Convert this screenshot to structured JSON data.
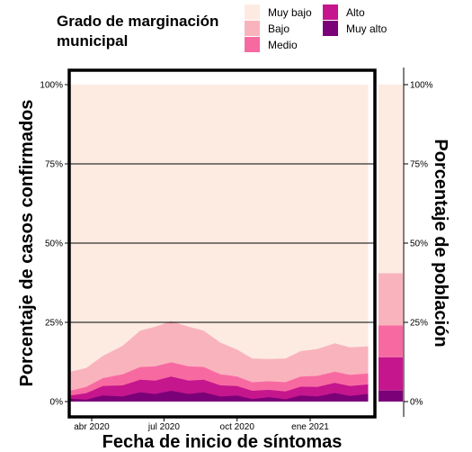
{
  "legend": {
    "title_line1": "Grado de marginación",
    "title_line2": "municipal",
    "items": [
      {
        "label": "Muy bajo",
        "color": "#fdebe2"
      },
      {
        "label": "Bajo",
        "color": "#f9b3bd"
      },
      {
        "label": "Medio",
        "color": "#f76aa1"
      },
      {
        "label": "Alto",
        "color": "#c5168d"
      },
      {
        "label": "Muy alto",
        "color": "#7a0177"
      }
    ]
  },
  "chart_data": {
    "type": "area",
    "stacking": "percent",
    "xlabel": "Fecha de inicio de síntomas",
    "ylabel": "Porcentaje de casos confirmados",
    "x_ticks": [
      "abr 2020",
      "jul 2020",
      "oct 2020",
      "ene 2021"
    ],
    "x_tick_dates": [
      "2020-04-01",
      "2020-07-01",
      "2020-10-01",
      "2021-01-01"
    ],
    "x_range": [
      "2020-03-01",
      "2021-03-20"
    ],
    "y_ticks": [
      "0%",
      "25%",
      "50%",
      "75%",
      "100%"
    ],
    "ylim": [
      0,
      100
    ],
    "grid": "horizontal",
    "categories": [
      "Muy bajo",
      "Bajo",
      "Medio",
      "Alto",
      "Muy alto"
    ],
    "cumulative_boundaries_pct": {
      "x": [
        "2020-03-05",
        "2020-03-25",
        "2020-04-15",
        "2020-05-10",
        "2020-06-01",
        "2020-06-20",
        "2020-07-10",
        "2020-08-01",
        "2020-08-20",
        "2020-09-10",
        "2020-10-01",
        "2020-10-20",
        "2020-11-10",
        "2020-12-01",
        "2020-12-20",
        "2021-01-10",
        "2021-02-01",
        "2021-02-20",
        "2021-03-15"
      ],
      "muy_alto_top": [
        0.5,
        1.0,
        1.5,
        2.0,
        2.5,
        2.8,
        3.0,
        2.8,
        2.5,
        2.0,
        1.5,
        1.2,
        1.0,
        1.1,
        1.5,
        2.0,
        2.3,
        2.2,
        2.0
      ],
      "alto_top": [
        1.5,
        3.0,
        4.5,
        5.5,
        6.5,
        7.0,
        7.5,
        7.0,
        6.5,
        5.5,
        4.5,
        3.8,
        3.3,
        3.6,
        4.3,
        5.0,
        5.5,
        5.3,
        5.0
      ],
      "medio_top": [
        3.0,
        5.0,
        7.0,
        9.0,
        10.5,
        11.5,
        12.0,
        11.5,
        10.5,
        9.0,
        7.5,
        6.5,
        6.0,
        6.5,
        7.5,
        8.5,
        9.0,
        8.8,
        8.5
      ],
      "bajo_top": [
        9.0,
        11.0,
        14.0,
        18.0,
        22.0,
        24.0,
        25.0,
        24.0,
        22.0,
        19.0,
        16.0,
        14.0,
        13.0,
        14.0,
        15.5,
        17.0,
        18.0,
        17.5,
        17.0
      ],
      "muy_bajo_top": [
        100,
        100,
        100,
        100,
        100,
        100,
        100,
        100,
        100,
        100,
        100,
        100,
        100,
        100,
        100,
        100,
        100,
        100,
        100
      ]
    },
    "secondary_axis": {
      "label": "Porcentaje de población",
      "ticks": [
        "0%",
        "25%",
        "50%",
        "75%",
        "100%"
      ],
      "stacked_bar_pct": [
        {
          "category": "Muy alto",
          "value": 3.5
        },
        {
          "category": "Alto",
          "value": 10.5
        },
        {
          "category": "Medio",
          "value": 10.0
        },
        {
          "category": "Bajo",
          "value": 16.5
        },
        {
          "category": "Muy bajo",
          "value": 59.5
        }
      ]
    }
  }
}
